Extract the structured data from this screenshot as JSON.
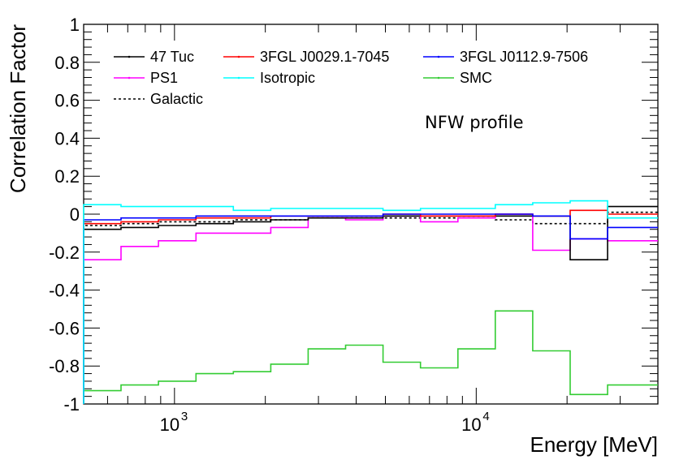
{
  "chart_data": {
    "type": "line",
    "step": true,
    "title": "",
    "annotation": "NFW profile",
    "xlabel": "Energy [MeV]",
    "ylabel": "Correlation Factor",
    "xscale": "log",
    "xlim": [
      500,
      40000
    ],
    "ylim": [
      -1,
      1
    ],
    "xticks": [
      {
        "value": 1000,
        "base": "10",
        "exp": "3"
      },
      {
        "value": 10000,
        "base": "10",
        "exp": "4"
      }
    ],
    "yticks": [
      {
        "value": -1,
        "label": "-1"
      },
      {
        "value": -0.8,
        "label": "-0.8"
      },
      {
        "value": -0.6,
        "label": "-0.6"
      },
      {
        "value": -0.4,
        "label": "-0.4"
      },
      {
        "value": -0.2,
        "label": "-0.2"
      },
      {
        "value": 0,
        "label": "0"
      },
      {
        "value": 0.2,
        "label": "0.2"
      },
      {
        "value": 0.4,
        "label": "0.4"
      },
      {
        "value": 0.6,
        "label": "0.6"
      },
      {
        "value": 0.8,
        "label": "0.8"
      },
      {
        "value": 1,
        "label": "1"
      }
    ],
    "bin_edges": [
      500,
      665,
      885,
      1178,
      1567,
      2085,
      2774,
      3691,
      4911,
      6535,
      8695,
      11569,
      15394,
      20483,
      27253,
      40000
    ],
    "legend_columns": 3,
    "series": [
      {
        "name": "47 Tuc",
        "color": "#000000",
        "dash": false,
        "values": [
          -0.08,
          -0.07,
          -0.06,
          -0.05,
          -0.04,
          -0.03,
          -0.02,
          -0.02,
          -0.01,
          -0.01,
          -0.01,
          -0.01,
          -0.01,
          -0.24,
          0.04
        ]
      },
      {
        "name": "3FGL J0029.1-7045",
        "color": "#ff0000",
        "dash": false,
        "values": [
          -0.05,
          -0.04,
          -0.03,
          -0.02,
          -0.02,
          -0.01,
          -0.01,
          -0.01,
          0.0,
          -0.01,
          -0.01,
          0.0,
          -0.01,
          0.02,
          0.0
        ]
      },
      {
        "name": "3FGL J0112.9-7506",
        "color": "#0000ff",
        "dash": false,
        "values": [
          -0.03,
          -0.02,
          -0.02,
          -0.01,
          -0.01,
          -0.01,
          -0.01,
          -0.01,
          0.0,
          0.0,
          0.0,
          0.0,
          -0.01,
          -0.13,
          -0.07
        ]
      },
      {
        "name": "PS1",
        "color": "#ff00ff",
        "dash": false,
        "values": [
          -0.24,
          -0.17,
          -0.14,
          -0.1,
          -0.1,
          -0.07,
          -0.02,
          -0.03,
          -0.01,
          -0.04,
          -0.02,
          0.0,
          -0.19,
          -0.13,
          -0.14
        ]
      },
      {
        "name": "Isotropic",
        "color": "#00ffff",
        "dash": false,
        "values": [
          0.05,
          0.04,
          0.04,
          0.04,
          0.02,
          0.03,
          0.03,
          0.03,
          0.02,
          0.03,
          0.03,
          0.05,
          0.06,
          0.07,
          -0.02
        ]
      },
      {
        "name": "SMC",
        "color": "#33cc33",
        "dash": false,
        "values": [
          -0.93,
          -0.9,
          -0.88,
          -0.84,
          -0.83,
          -0.79,
          -0.71,
          -0.69,
          -0.78,
          -0.81,
          -0.71,
          -0.51,
          -0.72,
          -0.95,
          -0.9
        ]
      },
      {
        "name": "Galactic",
        "color": "#000000",
        "dash": true,
        "values": [
          -0.06,
          -0.05,
          -0.04,
          -0.04,
          -0.03,
          -0.03,
          -0.02,
          -0.02,
          -0.02,
          -0.02,
          -0.02,
          -0.03,
          -0.05,
          -0.05,
          0.01
        ]
      }
    ]
  }
}
